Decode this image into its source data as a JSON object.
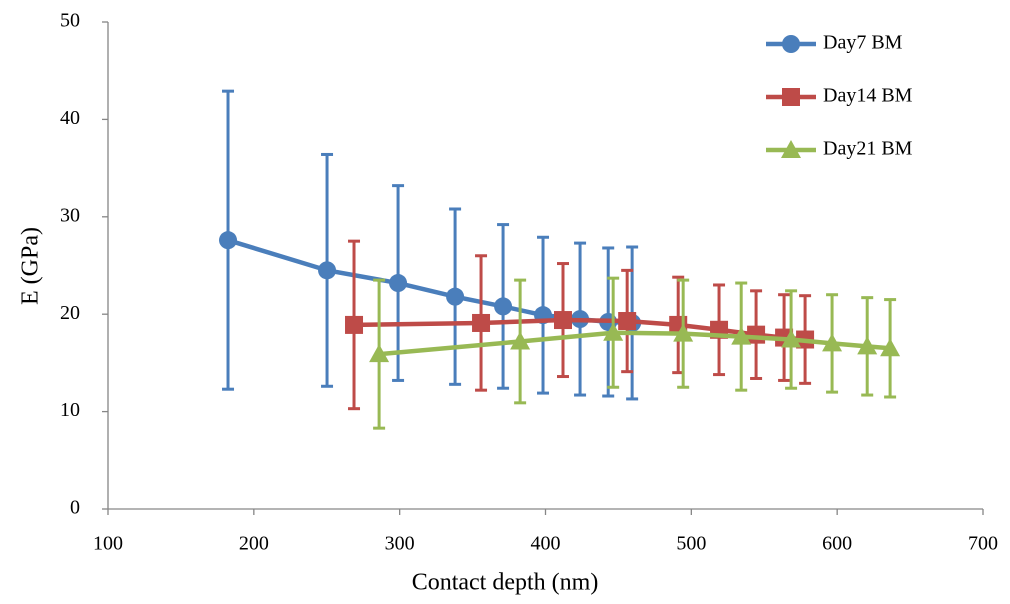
{
  "chart_data": {
    "type": "line",
    "x_label": "Contact depth (nm)",
    "y_label": "E (GPa)",
    "xlim": [
      100,
      700
    ],
    "xticks": [
      100,
      200,
      300,
      400,
      500,
      600,
      700
    ],
    "ylim": [
      0,
      50
    ],
    "yticks": [
      0,
      10,
      20,
      30,
      40,
      50
    ],
    "grid": false,
    "legend": "upper right",
    "series": [
      {
        "name": "Day7 BM",
        "color": "#4a7ebb",
        "marker": "circle",
        "x": [
          182.3,
          250.2,
          298.9,
          338,
          370.9,
          398.3,
          423.7,
          443,
          459.4
        ],
        "values": [
          27.6,
          24.5,
          23.2,
          21.8,
          20.8,
          19.9,
          19.5,
          19.2,
          19.1
        ],
        "errors": [
          15.3,
          11.9,
          10,
          9,
          8.4,
          8,
          7.8,
          7.6,
          7.8
        ]
      },
      {
        "name": "Day14 BM",
        "color": "#be4b48",
        "marker": "square",
        "x": [
          268.7,
          355.8,
          412,
          456,
          491,
          519,
          544.4,
          563.6,
          578
        ],
        "values": [
          18.9,
          19.1,
          19.4,
          19.3,
          18.9,
          18.4,
          17.9,
          17.6,
          17.4
        ],
        "errors": [
          8.6,
          6.9,
          5.8,
          5.2,
          4.9,
          4.6,
          4.5,
          4.4,
          4.5
        ]
      },
      {
        "name": "Day21 BM",
        "color": "#98b954",
        "marker": "triangle",
        "x": [
          285.9,
          382.6,
          446.4,
          494.4,
          534.2,
          568.4,
          596.5,
          620.6,
          636.3
        ],
        "values": [
          15.9,
          17.2,
          18.1,
          18.0,
          17.7,
          17.4,
          17.0,
          16.7,
          16.5
        ],
        "errors": [
          7.6,
          6.3,
          5.6,
          5.5,
          5.5,
          5.0,
          5.0,
          5.0,
          5.0
        ]
      }
    ]
  }
}
